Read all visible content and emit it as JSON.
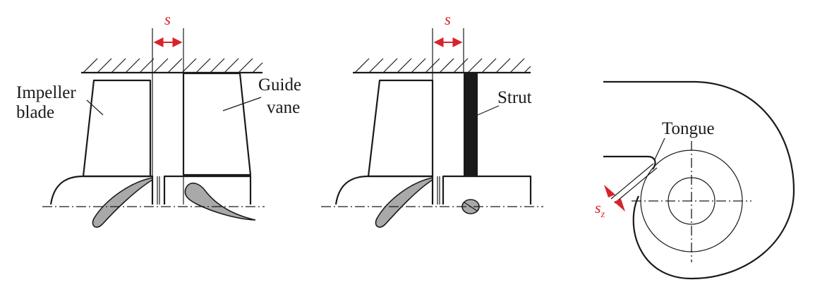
{
  "panel1": {
    "gap_label": "s",
    "impeller_label": [
      "Impeller",
      "blade"
    ],
    "guide_vane_label": [
      "Guide",
      "vane"
    ]
  },
  "panel2": {
    "gap_label": "s",
    "strut_label": "Strut"
  },
  "panel3": {
    "tongue_label": "Tongue",
    "gap_label_main": "s",
    "gap_label_sub": "z"
  },
  "colors": {
    "accent": "#d8232a",
    "line": "#1a1a1a",
    "blade_fill": "#a9a9a9"
  }
}
